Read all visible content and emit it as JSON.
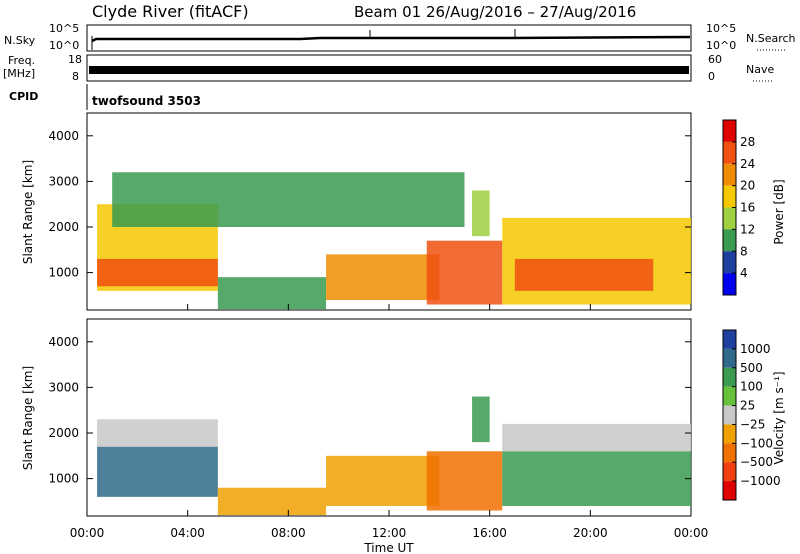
{
  "header": {
    "station": "Clyde River (fitACF)",
    "beam_period": "Beam 01  26/Aug/2016 – 27/Aug/2016"
  },
  "panels": {
    "nsky": {
      "left_label": "N.Sky",
      "right_label": "N.Search",
      "left_ticks": [
        "10^5",
        "10^0"
      ],
      "right_ticks": [
        "10^5",
        "10^0"
      ]
    },
    "freq": {
      "left_label_1": "Freq.",
      "left_label_2": "[MHz]",
      "right_label": "Nave",
      "left_ticks": [
        "18",
        "8"
      ],
      "right_ticks": [
        "60",
        "0"
      ]
    },
    "cpid": {
      "label": "CPID",
      "value": "twofsound 3503"
    }
  },
  "power_colorbar": {
    "label": "Power [dB]",
    "ticks": [
      "28",
      "24",
      "20",
      "16",
      "12",
      "8",
      "4"
    ],
    "colors": [
      "#e00000",
      "#f05010",
      "#f08c00",
      "#f5c800",
      "#9ed040",
      "#3a9a50",
      "#1f3fa0",
      "#0000f0"
    ]
  },
  "velocity_colorbar": {
    "label": "Velocity [m s⁻¹]",
    "ticks": [
      "1000",
      "500",
      "100",
      "25",
      "−25",
      "−100",
      "−500",
      "−1000"
    ],
    "colors": [
      "#1f3fa0",
      "#2f6a8a",
      "#3a9a50",
      "#66c23a",
      "#c8c8c8",
      "#f0a000",
      "#f07000",
      "#f04010",
      "#e00000"
    ]
  },
  "axes": {
    "ylabel": "Slant Range [km]",
    "xlabel": "Time UT",
    "y_ticks": [
      "1000",
      "2000",
      "3000",
      "4000"
    ],
    "x_ticks": [
      "00:00",
      "04:00",
      "08:00",
      "12:00",
      "16:00",
      "20:00",
      "00:00"
    ]
  },
  "chart_data": [
    {
      "type": "heatmap",
      "title": "",
      "quantity": "Power",
      "xlabel": "",
      "ylabel": "Slant Range [km]",
      "xlim_hours": [
        0,
        24
      ],
      "ylim_km": [
        180,
        4500
      ],
      "colorbar_label": "Power [dB]",
      "colorbar_range": [
        0,
        32
      ],
      "regions": [
        {
          "t": [
            0.4,
            5.2
          ],
          "r": [
            600,
            2500
          ],
          "level": 16
        },
        {
          "t": [
            0.4,
            5.2
          ],
          "r": [
            700,
            1300
          ],
          "level": 26
        },
        {
          "t": [
            5.2,
            9.5
          ],
          "r": [
            200,
            900
          ],
          "level": 10
        },
        {
          "t": [
            9.5,
            14.0
          ],
          "r": [
            400,
            1400
          ],
          "level": 20
        },
        {
          "t": [
            13.5,
            16.5
          ],
          "r": [
            300,
            1700
          ],
          "level": 26
        },
        {
          "t": [
            15.3,
            16.0
          ],
          "r": [
            1800,
            2800
          ],
          "level": 14
        },
        {
          "t": [
            16.5,
            24.0
          ],
          "r": [
            300,
            2200
          ],
          "level": 18
        },
        {
          "t": [
            17.0,
            22.5
          ],
          "r": [
            600,
            1300
          ],
          "level": 24
        },
        {
          "t": [
            1.0,
            15.0
          ],
          "r": [
            2000,
            3200
          ],
          "level": 10
        }
      ]
    },
    {
      "type": "heatmap",
      "title": "",
      "quantity": "Velocity",
      "xlabel": "Time UT",
      "ylabel": "Slant Range [km]",
      "xlim_hours": [
        0,
        24
      ],
      "ylim_km": [
        180,
        4500
      ],
      "colorbar_label": "Velocity [m s⁻¹]",
      "colorbar_range": [
        -1000,
        1000
      ],
      "regions": [
        {
          "t": [
            0.4,
            5.2
          ],
          "r": [
            600,
            1700
          ],
          "level": 600
        },
        {
          "t": [
            0.4,
            5.2
          ],
          "r": [
            1700,
            2300
          ],
          "level": 0
        },
        {
          "t": [
            5.2,
            9.5
          ],
          "r": [
            200,
            800
          ],
          "level": -150
        },
        {
          "t": [
            9.5,
            14.0
          ],
          "r": [
            400,
            1500
          ],
          "level": -300
        },
        {
          "t": [
            13.5,
            16.5
          ],
          "r": [
            300,
            1600
          ],
          "level": -500
        },
        {
          "t": [
            15.3,
            16.0
          ],
          "r": [
            1800,
            2800
          ],
          "level": 500
        },
        {
          "t": [
            16.5,
            24.0
          ],
          "r": [
            400,
            1600
          ],
          "level": 400
        },
        {
          "t": [
            16.5,
            24.0
          ],
          "r": [
            1600,
            2200
          ],
          "level": 0
        }
      ]
    }
  ]
}
